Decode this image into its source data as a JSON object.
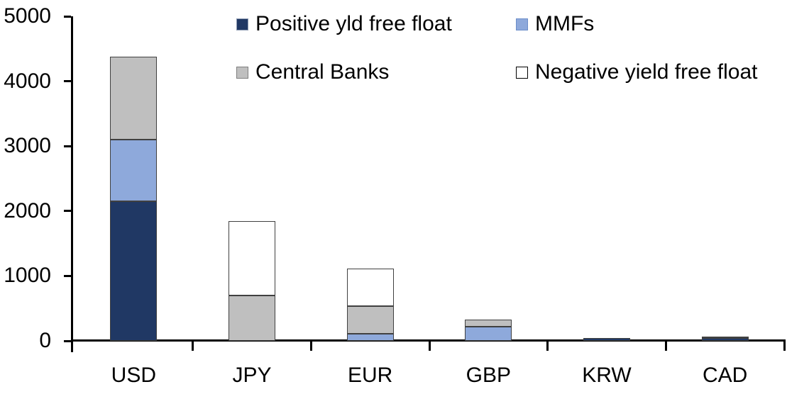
{
  "chart_data": {
    "type": "bar",
    "stacked": true,
    "title": "",
    "categories": [
      "USD",
      "JPY",
      "EUR",
      "GBP",
      "KRW",
      "CAD"
    ],
    "series": [
      {
        "name": "Positive yld free float",
        "color": "#203864",
        "swatch_border": "#8E9BB3",
        "values": [
          2150,
          0,
          0,
          0,
          40,
          40
        ]
      },
      {
        "name": "MMFs",
        "color": "#8EA9DB",
        "swatch_border": "#6C8EC9",
        "values": [
          950,
          0,
          110,
          220,
          0,
          0
        ]
      },
      {
        "name": "Central Banks",
        "color": "#BFBFBF",
        "swatch_border": "#7F7F7F",
        "values": [
          1280,
          700,
          430,
          110,
          0,
          25
        ]
      },
      {
        "name": "Negative yield free float",
        "color": "#FFFFFF",
        "swatch_border": "#000000",
        "values": [
          0,
          1150,
          570,
          0,
          0,
          0
        ]
      }
    ],
    "ylim": [
      0,
      5000
    ],
    "yticks": [
      0,
      1000,
      2000,
      3000,
      4000,
      5000
    ],
    "grid": false,
    "legend_position": "top-inside-two-columns",
    "axis_color": "#000000",
    "segment_border_color": "#404040",
    "background_color": "#FFFFFF",
    "totals_by_category": {
      "USD": 4380,
      "JPY": 1850,
      "EUR": 1110,
      "GBP": 330,
      "KRW": 40,
      "CAD": 65
    }
  }
}
